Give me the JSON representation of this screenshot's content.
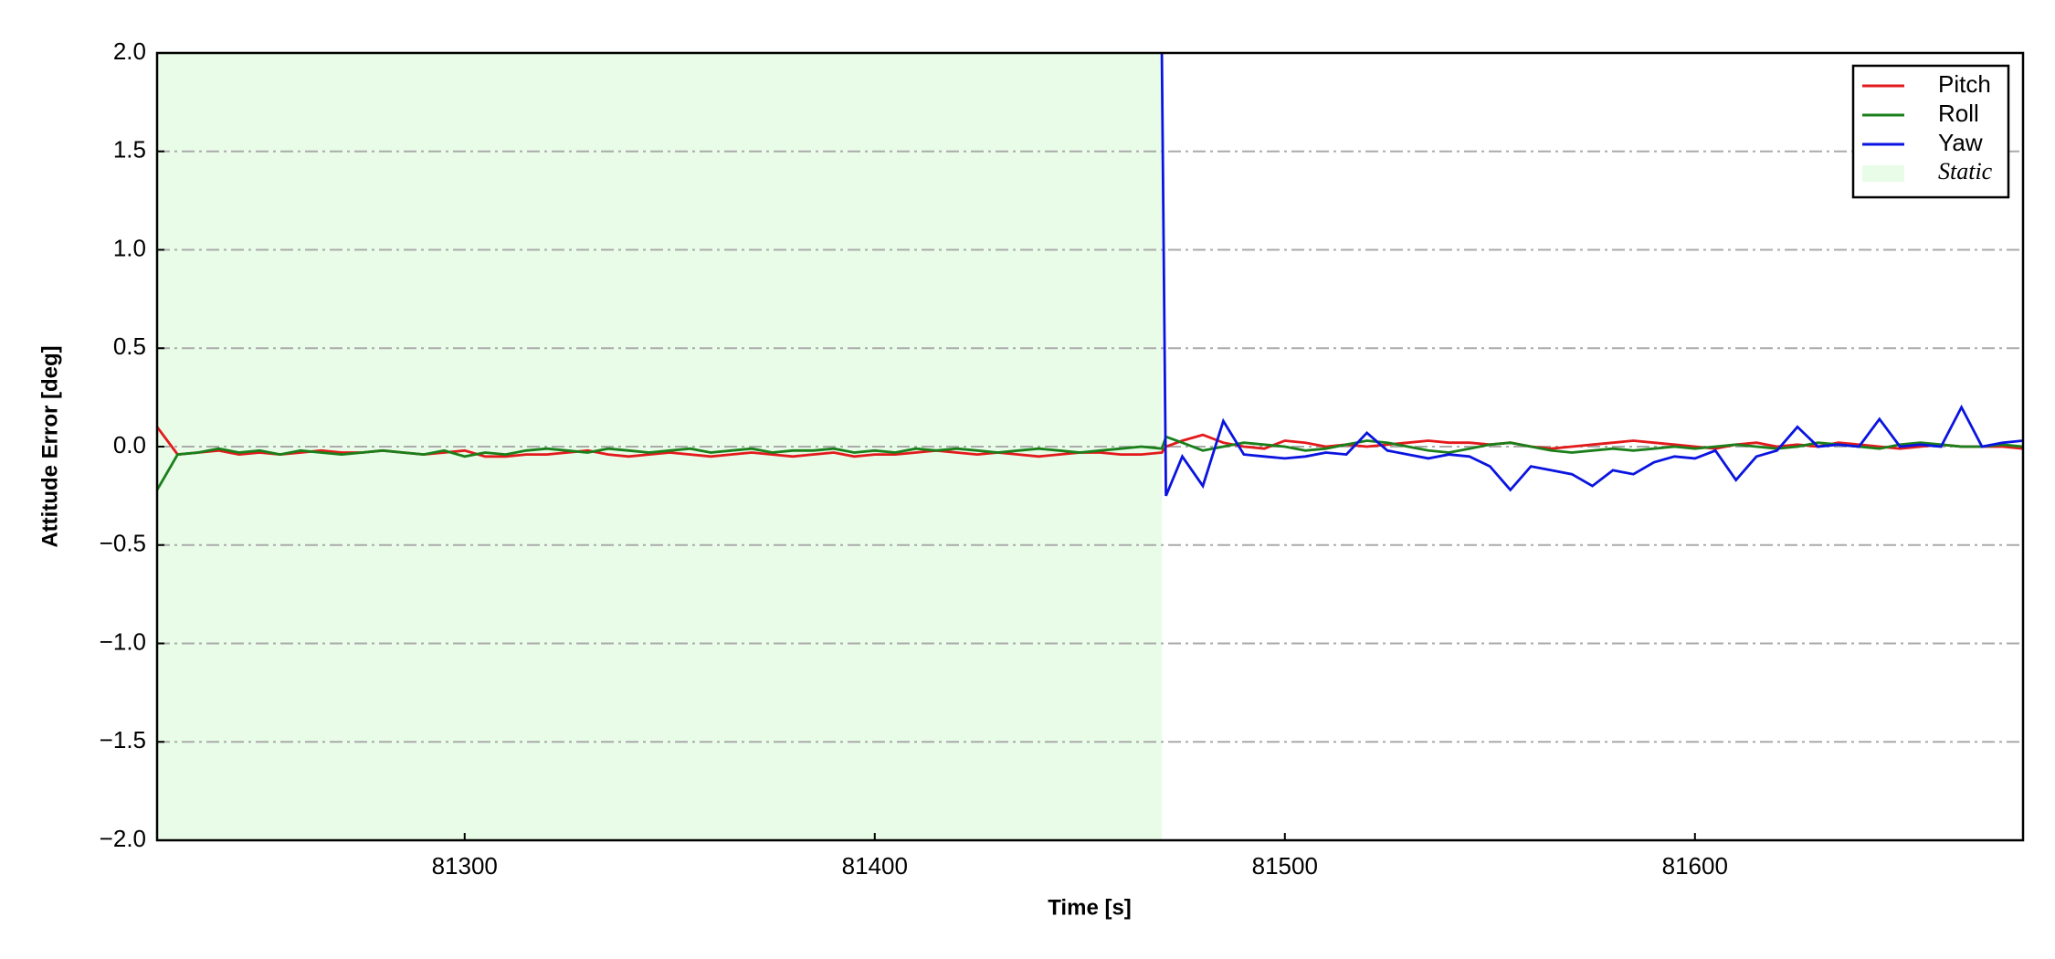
{
  "chart_data": {
    "type": "line",
    "xlabel": "Time [s]",
    "ylabel": "Attitude Error [deg]",
    "x": [
      81225,
      81230,
      81235,
      81240,
      81245,
      81250,
      81255,
      81260,
      81265,
      81270,
      81275,
      81280,
      81285,
      81290,
      81295,
      81300,
      81305,
      81310,
      81315,
      81320,
      81325,
      81330,
      81335,
      81340,
      81345,
      81350,
      81355,
      81360,
      81365,
      81370,
      81375,
      81380,
      81385,
      81390,
      81395,
      81400,
      81405,
      81410,
      81415,
      81420,
      81425,
      81430,
      81435,
      81440,
      81445,
      81450,
      81455,
      81460,
      81465,
      81470,
      81471,
      81475,
      81480,
      81485,
      81490,
      81495,
      81500,
      81505,
      81510,
      81515,
      81520,
      81525,
      81530,
      81535,
      81540,
      81545,
      81550,
      81555,
      81560,
      81565,
      81570,
      81575,
      81580,
      81585,
      81590,
      81595,
      81600,
      81605,
      81610,
      81615,
      81620,
      81625,
      81630,
      81635,
      81640,
      81645,
      81650,
      81655,
      81660,
      81665,
      81670,
      81675,
      81680
    ],
    "series": [
      {
        "name": "Pitch",
        "color": "#e31a1c",
        "values": [
          0.1,
          -0.04,
          -0.03,
          -0.02,
          -0.04,
          -0.03,
          -0.04,
          -0.03,
          -0.02,
          -0.03,
          -0.03,
          -0.02,
          -0.03,
          -0.04,
          -0.03,
          -0.02,
          -0.05,
          -0.05,
          -0.04,
          -0.04,
          -0.03,
          -0.02,
          -0.04,
          -0.05,
          -0.04,
          -0.03,
          -0.04,
          -0.05,
          -0.04,
          -0.03,
          -0.04,
          -0.05,
          -0.04,
          -0.03,
          -0.05,
          -0.04,
          -0.04,
          -0.03,
          -0.02,
          -0.03,
          -0.04,
          -0.03,
          -0.04,
          -0.05,
          -0.04,
          -0.03,
          -0.03,
          -0.04,
          -0.04,
          -0.03,
          0.0,
          0.03,
          0.06,
          0.02,
          0.0,
          -0.01,
          0.03,
          0.02,
          0.0,
          0.01,
          0.0,
          0.01,
          0.02,
          0.03,
          0.02,
          0.02,
          0.01,
          0.02,
          0.0,
          -0.01,
          0.0,
          0.01,
          0.02,
          0.03,
          0.02,
          0.01,
          0.0,
          -0.01,
          0.01,
          0.02,
          0.0,
          0.01,
          0.0,
          0.02,
          0.01,
          0.0,
          -0.01,
          0.0,
          0.01,
          0.0,
          0.0,
          0.0,
          -0.01
        ]
      },
      {
        "name": "Roll",
        "color": "#1a7f1a",
        "values": [
          -0.22,
          -0.04,
          -0.03,
          -0.01,
          -0.03,
          -0.02,
          -0.04,
          -0.02,
          -0.03,
          -0.04,
          -0.03,
          -0.02,
          -0.03,
          -0.04,
          -0.02,
          -0.05,
          -0.03,
          -0.04,
          -0.02,
          -0.01,
          -0.02,
          -0.03,
          -0.01,
          -0.02,
          -0.03,
          -0.02,
          -0.01,
          -0.03,
          -0.02,
          -0.01,
          -0.03,
          -0.02,
          -0.02,
          -0.01,
          -0.03,
          -0.02,
          -0.03,
          -0.01,
          -0.02,
          -0.01,
          -0.02,
          -0.03,
          -0.02,
          -0.01,
          -0.02,
          -0.03,
          -0.02,
          -0.01,
          0.0,
          -0.01,
          0.05,
          0.02,
          -0.02,
          0.0,
          0.02,
          0.01,
          0.0,
          -0.02,
          -0.01,
          0.01,
          0.03,
          0.02,
          0.0,
          -0.02,
          -0.03,
          -0.01,
          0.01,
          0.02,
          0.0,
          -0.02,
          -0.03,
          -0.02,
          -0.01,
          -0.02,
          -0.01,
          0.0,
          -0.01,
          0.0,
          0.01,
          0.0,
          -0.01,
          0.0,
          0.02,
          0.01,
          0.0,
          -0.01,
          0.01,
          0.02,
          0.01,
          0.0,
          0.0,
          0.01,
          0.0
        ]
      },
      {
        "name": "Yaw",
        "color": "#0a14e0",
        "values": [
          null,
          null,
          null,
          null,
          null,
          null,
          null,
          null,
          null,
          null,
          null,
          null,
          null,
          null,
          null,
          null,
          null,
          null,
          null,
          null,
          null,
          null,
          null,
          null,
          null,
          null,
          null,
          null,
          null,
          null,
          null,
          null,
          null,
          null,
          null,
          null,
          null,
          null,
          null,
          null,
          null,
          null,
          null,
          null,
          null,
          null,
          null,
          null,
          null,
          2.0,
          -0.25,
          -0.05,
          -0.2,
          0.13,
          -0.04,
          -0.05,
          -0.06,
          -0.05,
          -0.03,
          -0.04,
          0.07,
          -0.02,
          -0.04,
          -0.06,
          -0.04,
          -0.05,
          -0.1,
          -0.22,
          -0.1,
          -0.12,
          -0.14,
          -0.2,
          -0.12,
          -0.14,
          -0.08,
          -0.05,
          -0.06,
          -0.02,
          -0.17,
          -0.05,
          -0.02,
          0.1,
          0.0,
          0.01,
          0.0,
          0.14,
          0.0,
          0.01,
          0.0,
          0.2,
          0.0,
          0.02,
          0.03
        ]
      }
    ],
    "shaded_region": {
      "label": "Static",
      "xlim": [
        81225,
        81470
      ],
      "color": "#e8fce8"
    },
    "xlim": [
      81225,
      81680
    ],
    "xticks": [
      81300,
      81400,
      81500,
      81600
    ],
    "ylim": [
      -2,
      2
    ],
    "yticks": [
      {
        "value": -2,
        "label": "−2.0"
      },
      {
        "value": -1.5,
        "label": "−1.5"
      },
      {
        "value": -1,
        "label": "−1.0"
      },
      {
        "value": -0.5,
        "label": "−0.5"
      },
      {
        "value": 0,
        "label": "0.0"
      },
      {
        "value": 0.5,
        "label": "0.5"
      },
      {
        "value": 1,
        "label": "1.0"
      },
      {
        "value": 1.5,
        "label": "1.5"
      },
      {
        "value": 2,
        "label": "2.0"
      }
    ],
    "grid": true,
    "legend": "upper right"
  }
}
